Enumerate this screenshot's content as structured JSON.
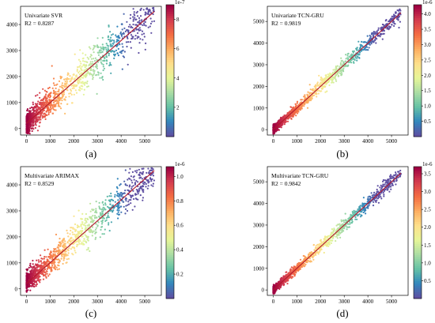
{
  "chart_data": [
    {
      "type": "scatter",
      "panel_label": "(a)",
      "model_label": "Univariate SVR",
      "r2_label": "R2 = 0.8287",
      "xlim": [
        -250,
        5700
      ],
      "ylim": [
        -250,
        4700
      ],
      "xticks": [
        "0",
        "1000",
        "2000",
        "3000",
        "4000",
        "5000"
      ],
      "yticks": [
        "0",
        "1000",
        "2000",
        "3000",
        "4000"
      ],
      "xtick_values": [
        0,
        1000,
        2000,
        3000,
        4000,
        5000
      ],
      "ytick_values": [
        0,
        1000,
        2000,
        3000,
        4000
      ],
      "colorbar": {
        "exponent": "1e-7",
        "ticks": [
          "2",
          "4",
          "6",
          "8"
        ],
        "tick_values": [
          2,
          4,
          6,
          8
        ],
        "range": [
          0,
          9
        ]
      },
      "fit_line": {
        "x": [
          0,
          5400
        ],
        "y": [
          200,
          4500
        ]
      },
      "point_cloud": {
        "count": 1200,
        "x_range": [
          0,
          5400
        ],
        "slope": 0.8,
        "intercept": 200,
        "spread": 380
      }
    },
    {
      "type": "scatter",
      "panel_label": "(b)",
      "model_label": "Univariate TCN-GRU",
      "r2_label": "R2 = 0.9819",
      "xlim": [
        -250,
        5700
      ],
      "ylim": [
        -250,
        5700
      ],
      "xticks": [
        "0",
        "1000",
        "2000",
        "3000",
        "4000",
        "5000"
      ],
      "yticks": [
        "0",
        "1000",
        "2000",
        "3000",
        "4000",
        "5000"
      ],
      "xtick_values": [
        0,
        1000,
        2000,
        3000,
        4000,
        5000
      ],
      "ytick_values": [
        0,
        1000,
        2000,
        3000,
        4000,
        5000
      ],
      "colorbar": {
        "exponent": "1e-6",
        "ticks": [
          "0.5",
          "1.0",
          "1.5",
          "2.0",
          "2.5",
          "3.0",
          "3.5",
          "4.0"
        ],
        "tick_values": [
          0.5,
          1.0,
          1.5,
          2.0,
          2.5,
          3.0,
          3.5,
          4.0
        ],
        "range": [
          0,
          4.3
        ]
      },
      "fit_line": {
        "x": [
          0,
          5400
        ],
        "y": [
          0,
          5400
        ]
      },
      "point_cloud": {
        "count": 1200,
        "x_range": [
          0,
          5400
        ],
        "slope": 1.0,
        "intercept": 0,
        "spread": 170
      }
    },
    {
      "type": "scatter",
      "panel_label": "(c)",
      "model_label": "Multivariate ARIMAX",
      "r2_label": "R2 = 0.8529",
      "xlim": [
        -250,
        5700
      ],
      "ylim": [
        -250,
        4700
      ],
      "xticks": [
        "0",
        "1000",
        "2000",
        "3000",
        "4000",
        "5000"
      ],
      "yticks": [
        "0",
        "1000",
        "2000",
        "3000",
        "4000"
      ],
      "xtick_values": [
        0,
        1000,
        2000,
        3000,
        4000,
        5000
      ],
      "ytick_values": [
        0,
        1000,
        2000,
        3000,
        4000
      ],
      "colorbar": {
        "exponent": "1e-6",
        "ticks": [
          "0.2",
          "0.4",
          "0.6",
          "0.8",
          "1.0"
        ],
        "tick_values": [
          0.2,
          0.4,
          0.6,
          0.8,
          1.0
        ],
        "range": [
          0,
          1.08
        ]
      },
      "fit_line": {
        "x": [
          0,
          5400
        ],
        "y": [
          200,
          4550
        ]
      },
      "point_cloud": {
        "count": 1200,
        "x_range": [
          0,
          5400
        ],
        "slope": 0.8,
        "intercept": 250,
        "spread": 330
      }
    },
    {
      "type": "scatter",
      "panel_label": "(d)",
      "model_label": "Multivariate TCN-GRU",
      "r2_label": "R2 = 0.9842",
      "xlim": [
        -250,
        5700
      ],
      "ylim": [
        -250,
        5700
      ],
      "xticks": [
        "0",
        "1000",
        "2000",
        "3000",
        "4000",
        "5000"
      ],
      "yticks": [
        "0",
        "1000",
        "2000",
        "3000",
        "4000",
        "5000"
      ],
      "xtick_values": [
        0,
        1000,
        2000,
        3000,
        4000,
        5000
      ],
      "ytick_values": [
        0,
        1000,
        2000,
        3000,
        4000,
        5000
      ],
      "colorbar": {
        "exponent": "1e-6",
        "ticks": [
          "0.5",
          "1.0",
          "1.5",
          "2.0",
          "2.5",
          "3.0",
          "3.5"
        ],
        "tick_values": [
          0.5,
          1.0,
          1.5,
          2.0,
          2.5,
          3.0,
          3.5
        ],
        "range": [
          0,
          3.7
        ]
      },
      "fit_line": {
        "x": [
          0,
          5400
        ],
        "y": [
          0,
          5400
        ]
      },
      "point_cloud": {
        "count": 1200,
        "x_range": [
          0,
          5400
        ],
        "slope": 1.0,
        "intercept": 0,
        "spread": 160
      }
    }
  ],
  "colors": {
    "colormap": [
      "#5e4fa2",
      "#3288bd",
      "#66c2a5",
      "#abdda4",
      "#e6f598",
      "#fee08b",
      "#fdae61",
      "#f46d43",
      "#d53e4f",
      "#9e0142"
    ],
    "fit_line": "#b2182b"
  }
}
